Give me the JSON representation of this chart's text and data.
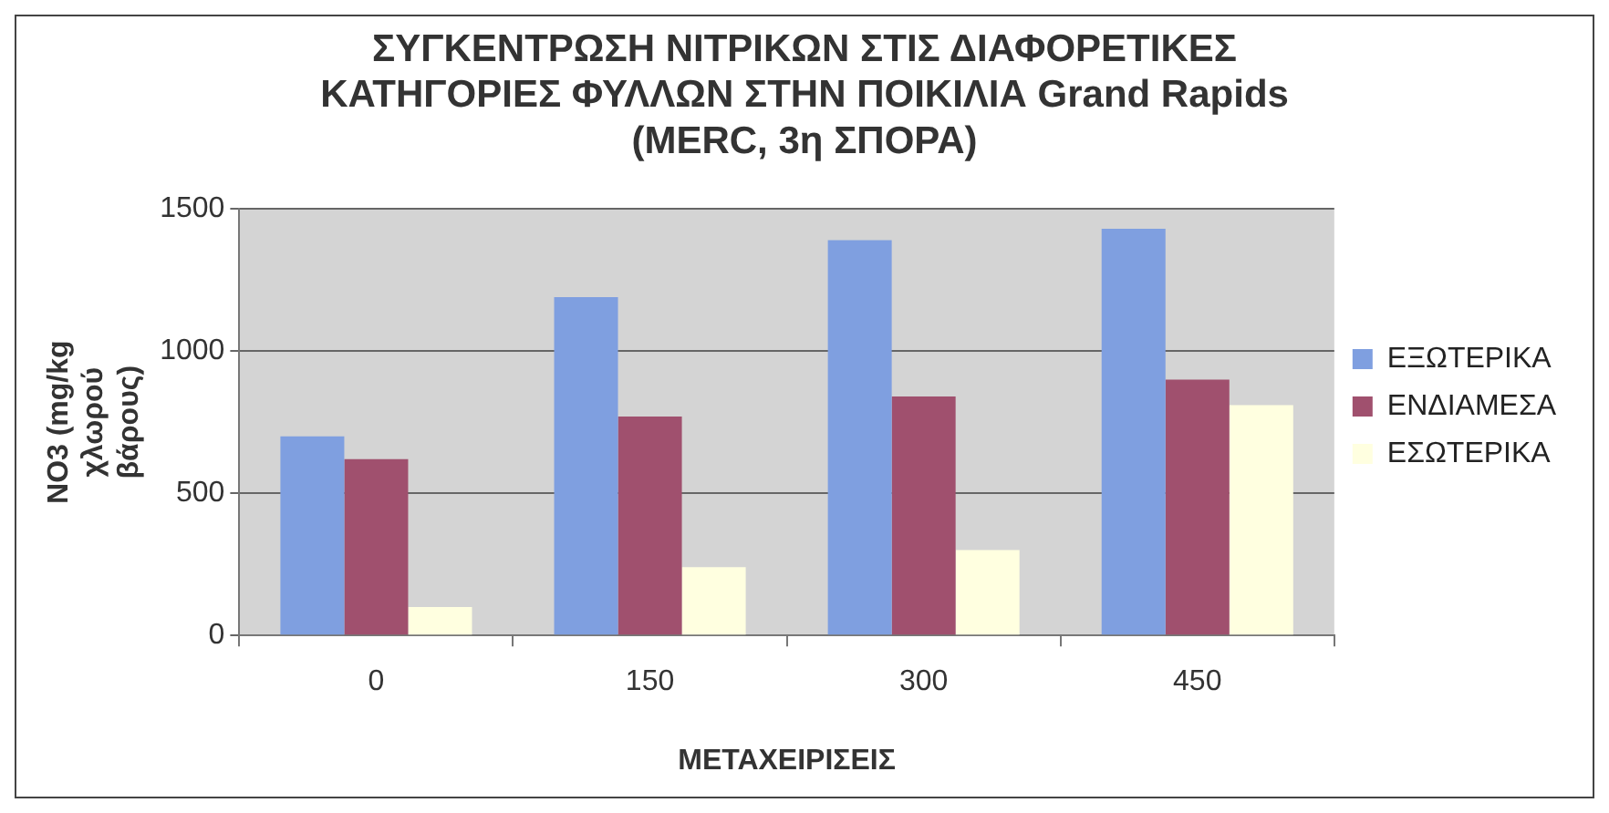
{
  "chart_data": {
    "type": "bar",
    "title": "ΣΥΓΚΕΝΤΡΩΣΗ ΝΙΤΡΙΚΩΝ ΣΤΙΣ ΔΙΑΦΟΡΕΤΙΚΕΣ ΚΑΤΗΓΟΡΙΕΣ ΦΥΛΛΩΝ ΣΤΗΝ ΠΟΙΚΙΛΙΑ Grand Rapids (MERC, 3η ΣΠΟΡΑ)",
    "xlabel": "ΜΕΤΑΧΕΙΡΙΣΕΙΣ",
    "ylabel": "NO3 (mg/kg χλωρού βάρους)",
    "categories": [
      "0",
      "150",
      "300",
      "450"
    ],
    "series": [
      {
        "name": "ΕΞΩΤΕΡΙΚΑ",
        "color": "#7f9fe0",
        "values": [
          700,
          1190,
          1390,
          1430
        ]
      },
      {
        "name": "ΕΝΔΙΑΜΕΣΑ",
        "color": "#a0506e",
        "values": [
          620,
          770,
          840,
          900
        ]
      },
      {
        "name": "ΕΣΩΤΕΡΙΚΑ",
        "color": "#ffffe0",
        "values": [
          100,
          240,
          300,
          810
        ]
      }
    ],
    "ylim": [
      0,
      1500
    ],
    "yticks": [
      0,
      500,
      1000,
      1500
    ],
    "grid": "y",
    "legend": "right"
  }
}
